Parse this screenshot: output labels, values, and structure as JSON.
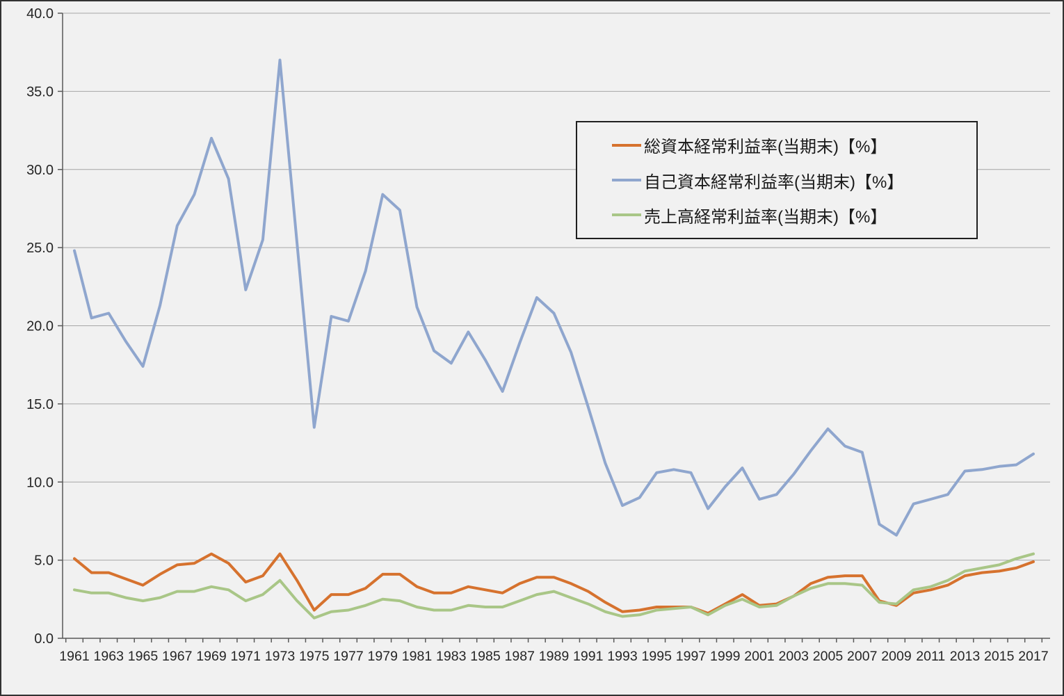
{
  "window": {
    "background": "#F1F1F1",
    "border_color": "#333333",
    "gridline_color": "#A6A6A6",
    "axis_color": "#595959",
    "label_color": "#262626"
  },
  "chart_data": {
    "type": "line",
    "title": "",
    "xlabel": "",
    "ylabel": "",
    "ylim": [
      0,
      40
    ],
    "y_ticks": [
      0,
      5,
      10,
      15,
      20,
      25,
      30,
      35,
      40
    ],
    "y_tick_labels": [
      "0.0",
      "5.0",
      "10.0",
      "15.0",
      "20.0",
      "25.0",
      "30.0",
      "35.0",
      "40.0"
    ],
    "grid": "horizontal",
    "legend_position": "upper-right-box",
    "x": [
      1961,
      1962,
      1963,
      1964,
      1965,
      1966,
      1967,
      1968,
      1969,
      1970,
      1971,
      1972,
      1973,
      1974,
      1975,
      1976,
      1977,
      1978,
      1979,
      1980,
      1981,
      1982,
      1983,
      1984,
      1985,
      1986,
      1987,
      1988,
      1989,
      1990,
      1991,
      1992,
      1993,
      1994,
      1995,
      1996,
      1997,
      1998,
      1999,
      2000,
      2001,
      2002,
      2003,
      2004,
      2005,
      2006,
      2007,
      2008,
      2009,
      2010,
      2011,
      2012,
      2013,
      2014,
      2015,
      2016,
      2017
    ],
    "x_tick_labels": [
      "1961",
      "1963",
      "1965",
      "1967",
      "1969",
      "1971",
      "1973",
      "1975",
      "1977",
      "1979",
      "1981",
      "1983",
      "1985",
      "1987",
      "1989",
      "1991",
      "1993",
      "1995",
      "1997",
      "1999",
      "2001",
      "2003",
      "2005",
      "2007",
      "2009",
      "2011",
      "2013",
      "2015",
      "2017"
    ],
    "series": [
      {
        "name": "総資本経常利益率(当期末)【%】",
        "color": "#D6722E",
        "values": [
          5.1,
          4.2,
          4.2,
          3.8,
          3.4,
          4.1,
          4.7,
          4.8,
          5.4,
          4.8,
          3.6,
          4.0,
          5.4,
          3.7,
          1.8,
          2.8,
          2.8,
          3.2,
          4.1,
          4.1,
          3.3,
          2.9,
          2.9,
          3.3,
          3.1,
          2.9,
          3.5,
          3.9,
          3.9,
          3.5,
          3.0,
          2.3,
          1.7,
          1.8,
          2.0,
          2.0,
          2.0,
          1.6,
          2.2,
          2.8,
          2.1,
          2.2,
          2.7,
          3.5,
          3.9,
          4.0,
          4.0,
          2.4,
          2.1,
          2.9,
          3.1,
          3.4,
          4.0,
          4.2,
          4.3,
          4.5,
          4.9
        ]
      },
      {
        "name": "自己資本経常利益率(当期末)【%】",
        "color": "#8FA6CE",
        "values": [
          24.8,
          20.5,
          20.8,
          19.0,
          17.4,
          21.3,
          26.4,
          28.4,
          32.0,
          29.4,
          22.3,
          25.5,
          37.0,
          25.3,
          13.5,
          20.6,
          20.3,
          23.5,
          28.4,
          27.4,
          21.2,
          18.4,
          17.6,
          19.6,
          17.8,
          15.8,
          18.9,
          21.8,
          20.8,
          18.3,
          14.8,
          11.2,
          8.5,
          9.0,
          10.6,
          10.8,
          10.6,
          8.3,
          9.7,
          10.9,
          8.9,
          9.2,
          10.5,
          12.0,
          13.4,
          12.3,
          11.9,
          7.3,
          6.6,
          8.6,
          8.9,
          9.2,
          10.7,
          10.8,
          11.0,
          11.1,
          11.8
        ]
      },
      {
        "name": "売上高経常利益率(当期末)【%】",
        "color": "#A9C687",
        "values": [
          3.1,
          2.9,
          2.9,
          2.6,
          2.4,
          2.6,
          3.0,
          3.0,
          3.3,
          3.1,
          2.4,
          2.8,
          3.7,
          2.4,
          1.3,
          1.7,
          1.8,
          2.1,
          2.5,
          2.4,
          2.0,
          1.8,
          1.8,
          2.1,
          2.0,
          2.0,
          2.4,
          2.8,
          3.0,
          2.6,
          2.2,
          1.7,
          1.4,
          1.5,
          1.8,
          1.9,
          2.0,
          1.5,
          2.1,
          2.5,
          2.0,
          2.1,
          2.7,
          3.2,
          3.5,
          3.5,
          3.4,
          2.3,
          2.2,
          3.1,
          3.3,
          3.7,
          4.3,
          4.5,
          4.7,
          5.1,
          5.4
        ]
      }
    ]
  }
}
